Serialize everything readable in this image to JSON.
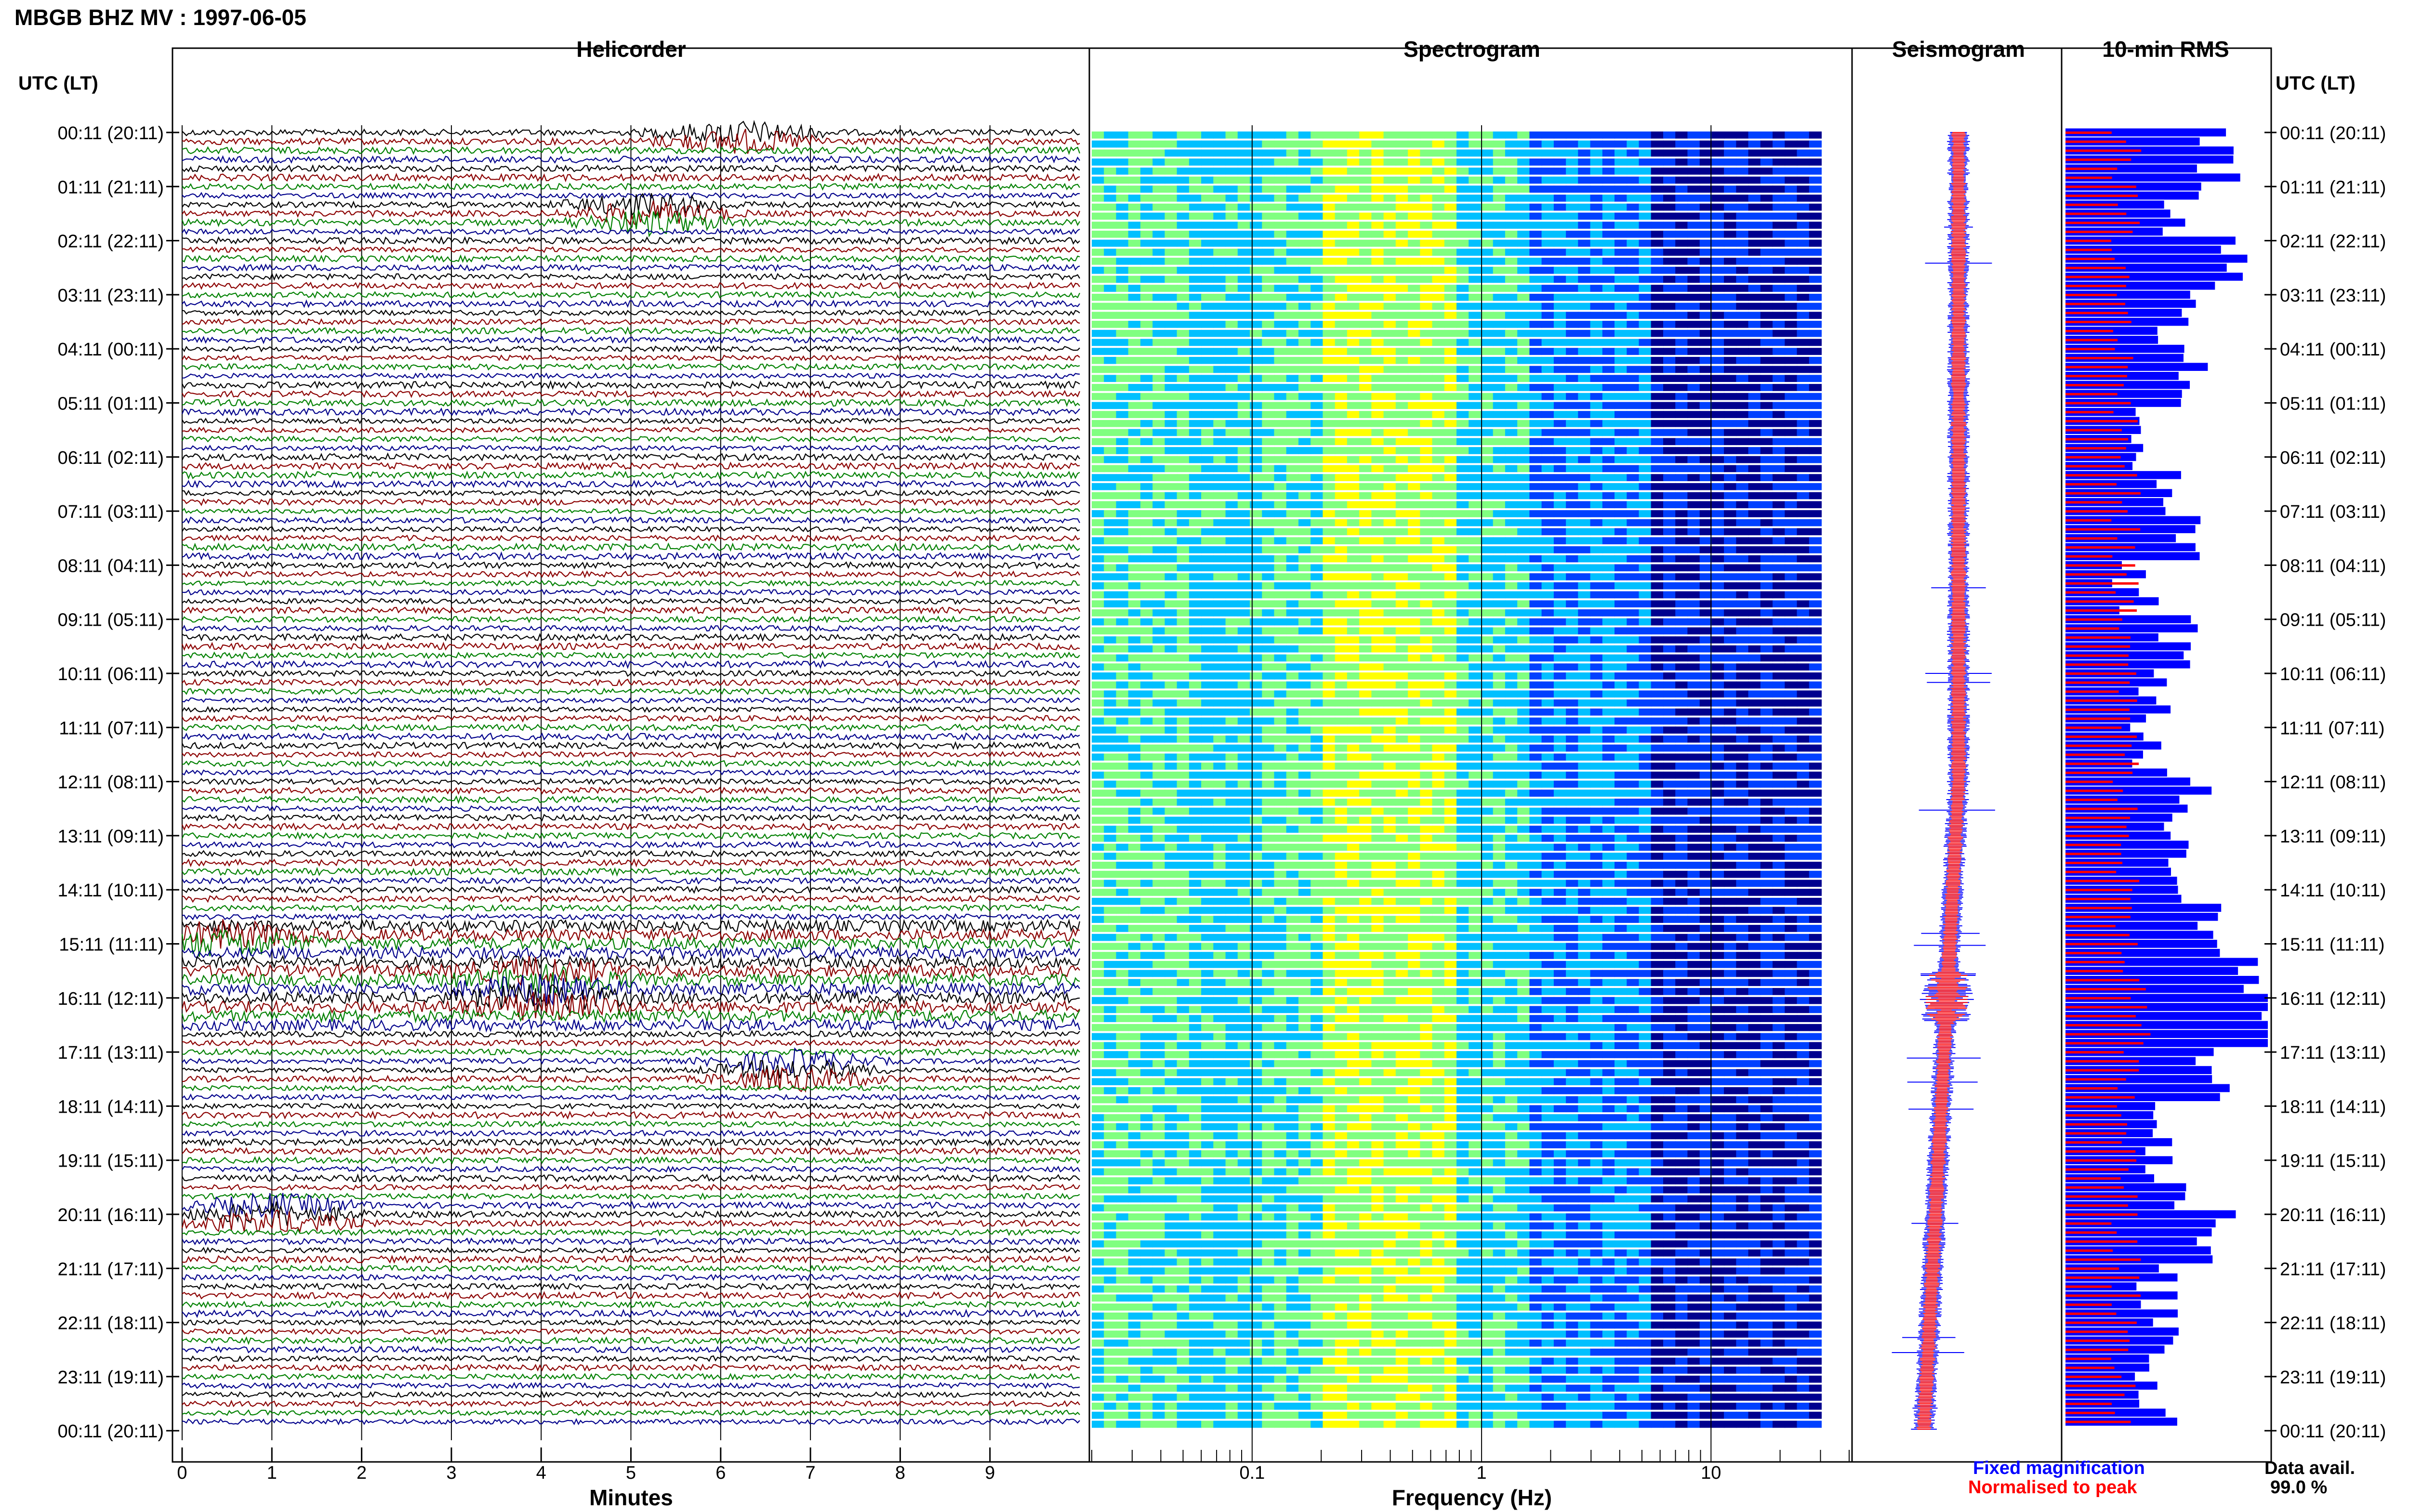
{
  "figure": {
    "title": "MBGB BHZ MV : 1997-06-05",
    "data_availability_label": "Data avail.",
    "data_availability_value": "99.0 %"
  },
  "panels": {
    "helicorder": {
      "title": "Helicorder",
      "xlabel": "Minutes"
    },
    "spectrogram": {
      "title": "Spectrogram",
      "xlabel": "Frequency (Hz)"
    },
    "seismogram": {
      "title": "Seismogram"
    },
    "rms": {
      "title": "10-min RMS"
    }
  },
  "axis_header": {
    "left": "UTC (LT)",
    "right": "UTC (LT)"
  },
  "legend": [
    {
      "label": "Fixed magnification",
      "color": "#0000ff"
    },
    {
      "label": "Normalised to peak",
      "color": "#ff0000"
    }
  ],
  "colors": {
    "trace_cycle": [
      "#000000",
      "#8b0000",
      "#008000",
      "#00008b"
    ],
    "seismo_fixed": "#0000ff",
    "seismo_norm": "#ff0000",
    "grid": "#000000"
  },
  "chart_data": [
    {
      "type": "line",
      "name": "helicorder",
      "x_unit": "minutes",
      "xlim": [
        0,
        10
      ],
      "x_ticks": [
        "0",
        "1",
        "2",
        "3",
        "4",
        "5",
        "6",
        "7",
        "8",
        "9"
      ],
      "row_minutes": 10,
      "rows": 144,
      "time_labels": [
        "00:11 (20:11)",
        "01:11 (21:11)",
        "02:11 (22:11)",
        "03:11 (23:11)",
        "04:11 (00:11)",
        "05:11 (01:11)",
        "06:11 (02:11)",
        "07:11 (03:11)",
        "08:11 (04:11)",
        "09:11 (05:11)",
        "10:11 (06:11)",
        "11:11 (07:11)",
        "12:11 (08:11)",
        "13:11 (09:11)",
        "14:11 (10:11)",
        "15:11 (11:11)",
        "16:11 (12:11)",
        "17:11 (13:11)",
        "18:11 (14:11)",
        "19:11 (15:11)",
        "20:11 (16:11)",
        "21:11 (17:11)",
        "22:11 (18:11)",
        "23:11 (19:11)",
        "00:11 (20:11)"
      ],
      "noted_events_minutes": [
        {
          "hour": 0.1,
          "minute": 6.2
        },
        {
          "hour": 1.5,
          "minute": 5.2
        },
        {
          "hour": 14.9,
          "minute": 0.5
        },
        {
          "hour": 15.6,
          "minute": 4.0
        },
        {
          "hour": 16.0,
          "minute": 4.0
        },
        {
          "hour": 17.3,
          "minute": 6.8
        },
        {
          "hour": 20.0,
          "minute": 1.0
        }
      ]
    },
    {
      "type": "heatmap",
      "name": "spectrogram",
      "x_scale": "log",
      "xlim_hz": [
        0.02,
        40
      ],
      "x_tick_labels": [
        "0.1",
        "1",
        "10"
      ],
      "x_tick_values": [
        0.1,
        1,
        10
      ],
      "colormap": [
        "#00008f",
        "#0040ff",
        "#00c0ff",
        "#80ff80",
        "#ffff00"
      ],
      "dominant_band_hz": [
        0.2,
        0.6
      ],
      "rows": 144
    },
    {
      "type": "line",
      "name": "seismogram",
      "series": [
        {
          "name": "Fixed magnification",
          "color": "#0000ff"
        },
        {
          "name": "Normalised to peak",
          "color": "#ff0000"
        }
      ]
    },
    {
      "type": "bar",
      "name": "10-min RMS",
      "orientation": "horizontal",
      "rows": 144,
      "series": [
        {
          "name": "Fixed magnification",
          "color": "#0000ff"
        },
        {
          "name": "Normalised to peak",
          "color": "#ff0000"
        }
      ],
      "hourly_rms_fixed": [
        0.75,
        0.6,
        0.85,
        0.55,
        0.6,
        0.45,
        0.45,
        0.55,
        0.35,
        0.55,
        0.45,
        0.4,
        0.6,
        0.55,
        0.65,
        0.85,
        1.0,
        0.75,
        0.5,
        0.5,
        0.75,
        0.45,
        0.45,
        0.45
      ],
      "hourly_rms_norm": [
        0.3,
        0.3,
        0.3,
        0.3,
        0.3,
        0.3,
        0.3,
        0.3,
        0.3,
        0.3,
        0.3,
        0.3,
        0.3,
        0.3,
        0.3,
        0.35,
        0.35,
        0.3,
        0.3,
        0.3,
        0.3,
        0.3,
        0.3,
        0.3
      ]
    }
  ]
}
